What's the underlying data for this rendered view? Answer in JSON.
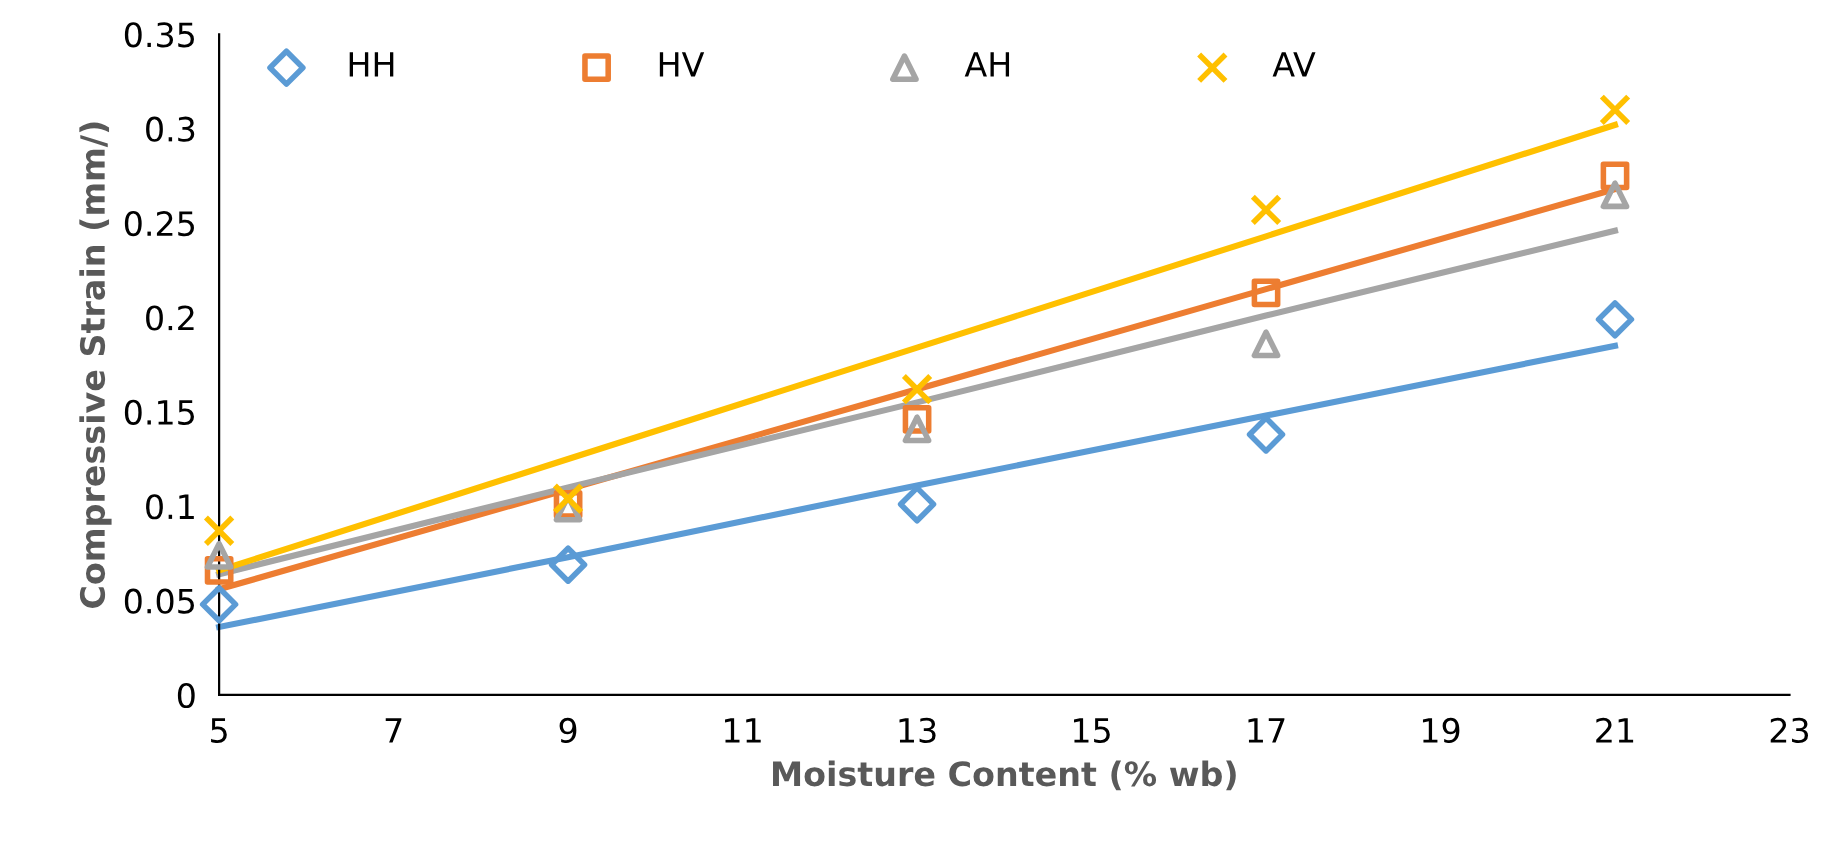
{
  "chart_data": {
    "type": "scatter",
    "xlabel": "Moisture Content (% wb)",
    "ylabel": "Compressive Strain (mm/)",
    "x": [
      5,
      9,
      13,
      17,
      21
    ],
    "xlim": [
      5,
      23
    ],
    "xticks": [
      5,
      7,
      9,
      11,
      13,
      15,
      17,
      19,
      21,
      23
    ],
    "ylim": [
      0,
      0.35
    ],
    "yticks": [
      0,
      0.05,
      0.1,
      0.15,
      0.2,
      0.25,
      0.3,
      0.35
    ],
    "grid": false,
    "legend": "top",
    "series": [
      {
        "name": "HH",
        "color": "#5b9bd5",
        "marker": "diamond",
        "values": [
          0.048,
          0.069,
          0.101,
          0.138,
          0.199
        ]
      },
      {
        "name": "HV",
        "color": "#ed7d31",
        "marker": "square",
        "values": [
          0.066,
          0.101,
          0.146,
          0.213,
          0.275
        ]
      },
      {
        "name": "AH",
        "color": "#a5a5a5",
        "marker": "triangle",
        "values": [
          0.074,
          0.099,
          0.141,
          0.186,
          0.265
        ]
      },
      {
        "name": "AV",
        "color": "#ffc000",
        "marker": "cross",
        "values": [
          0.087,
          0.104,
          0.162,
          0.257,
          0.31
        ]
      },
      {
        "type": "line",
        "color": "#5b9bd5",
        "marker": "none",
        "values": [
          0.036,
          0.073,
          0.111,
          0.148,
          0.185
        ]
      },
      {
        "type": "line",
        "color": "#ed7d31",
        "marker": "none",
        "values": [
          0.056,
          0.109,
          0.162,
          0.215,
          0.268
        ]
      },
      {
        "type": "line",
        "color": "#a5a5a5",
        "marker": "none",
        "values": [
          0.064,
          0.11,
          0.155,
          0.201,
          0.246
        ]
      },
      {
        "type": "line",
        "color": "#ffc000",
        "marker": "none",
        "values": [
          0.066,
          0.125,
          0.184,
          0.243,
          0.302
        ]
      }
    ]
  }
}
